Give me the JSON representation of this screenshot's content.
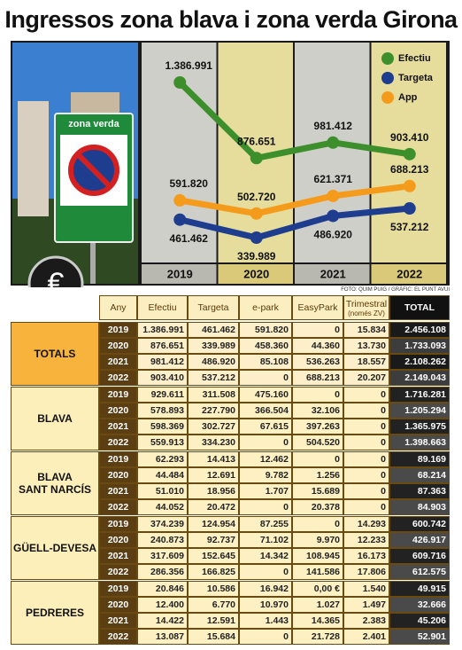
{
  "title": "Ingressos zona blava i zona verda Girona",
  "sign_text": "zona verda",
  "icon_label": "€",
  "chart_data": {
    "type": "line",
    "categories": [
      "2019",
      "2020",
      "2021",
      "2022"
    ],
    "series": [
      {
        "name": "Efectiu",
        "color": "#3d8f2b",
        "values": [
          1386991,
          876651,
          981412,
          903410
        ],
        "value_labels": [
          "1.386.991",
          "876.651",
          "981.412",
          "903.410"
        ]
      },
      {
        "name": "Targeta",
        "color": "#1e3d8f",
        "values": [
          461462,
          339989,
          486920,
          537212
        ],
        "value_labels": [
          "461.462",
          "339.989",
          "486.920",
          "537.212"
        ]
      },
      {
        "name": "App",
        "color": "#f59b1c",
        "values": [
          591820,
          502720,
          621371,
          688213
        ],
        "value_labels": [
          "591.820",
          "502.720",
          "621.371",
          "688.213"
        ]
      }
    ],
    "legend": "top-right"
  },
  "credit": "FOTO: QUIM PUIG / GRÀFIC: EL PUNT AVUI",
  "table": {
    "header": [
      "Any",
      "Efectiu",
      "Targeta",
      "e-park",
      "EasyPark",
      "Trimestral",
      "TOTAL"
    ],
    "header_note": "(només ZV)",
    "groups": [
      {
        "name": "TOTALS",
        "rows": [
          [
            "2019",
            "1.386.991",
            "461.462",
            "591.820",
            "0",
            "15.834",
            "2.456.108"
          ],
          [
            "2020",
            "876.651",
            "339.989",
            "458.360",
            "44.360",
            "13.730",
            "1.733.093"
          ],
          [
            "2021",
            "981.412",
            "486.920",
            "85.108",
            "536.263",
            "18.557",
            "2.108.262"
          ],
          [
            "2022",
            "903.410",
            "537.212",
            "0",
            "688.213",
            "20.207",
            "2.149.043"
          ]
        ]
      },
      {
        "name": "BLAVA",
        "rows": [
          [
            "2019",
            "929.611",
            "311.508",
            "475.160",
            "0",
            "0",
            "1.716.281"
          ],
          [
            "2020",
            "578.893",
            "227.790",
            "366.504",
            "32.106",
            "0",
            "1.205.294"
          ],
          [
            "2021",
            "598.369",
            "302.727",
            "67.615",
            "397.263",
            "0",
            "1.365.975"
          ],
          [
            "2022",
            "559.913",
            "334.230",
            "0",
            "504.520",
            "0",
            "1.398.663"
          ]
        ]
      },
      {
        "name": "BLAVA\nSANT NARCÍS",
        "rows": [
          [
            "2019",
            "62.293",
            "14.413",
            "12.462",
            "0",
            "0",
            "89.169"
          ],
          [
            "2020",
            "44.484",
            "12.691",
            "9.782",
            "1.256",
            "0",
            "68.214"
          ],
          [
            "2021",
            "51.010",
            "18.956",
            "1.707",
            "15.689",
            "0",
            "87.363"
          ],
          [
            "2022",
            "44.052",
            "20.472",
            "0",
            "20.378",
            "0",
            "84.903"
          ]
        ]
      },
      {
        "name": "GÜELL-DEVESA",
        "rows": [
          [
            "2019",
            "374.239",
            "124.954",
            "87.255",
            "0",
            "14.293",
            "600.742"
          ],
          [
            "2020",
            "240.873",
            "92.737",
            "71.102",
            "9.970",
            "12.233",
            "426.917"
          ],
          [
            "2021",
            "317.609",
            "152.645",
            "14.342",
            "108.945",
            "16.173",
            "609.716"
          ],
          [
            "2022",
            "286.356",
            "166.825",
            "0",
            "141.586",
            "17.806",
            "612.575"
          ]
        ]
      },
      {
        "name": "PEDRERES",
        "rows": [
          [
            "2019",
            "20.846",
            "10.586",
            "16.942",
            "0,00 €",
            "1.540",
            "49.915"
          ],
          [
            "2020",
            "12.400",
            "6.770",
            "10.970",
            "1.027",
            "1.497",
            "32.666"
          ],
          [
            "2021",
            "14.422",
            "12.591",
            "1.443",
            "14.365",
            "2.383",
            "45.206"
          ],
          [
            "2022",
            "13.087",
            "15.684",
            "0",
            "21.728",
            "2.401",
            "52.901"
          ]
        ]
      }
    ]
  }
}
